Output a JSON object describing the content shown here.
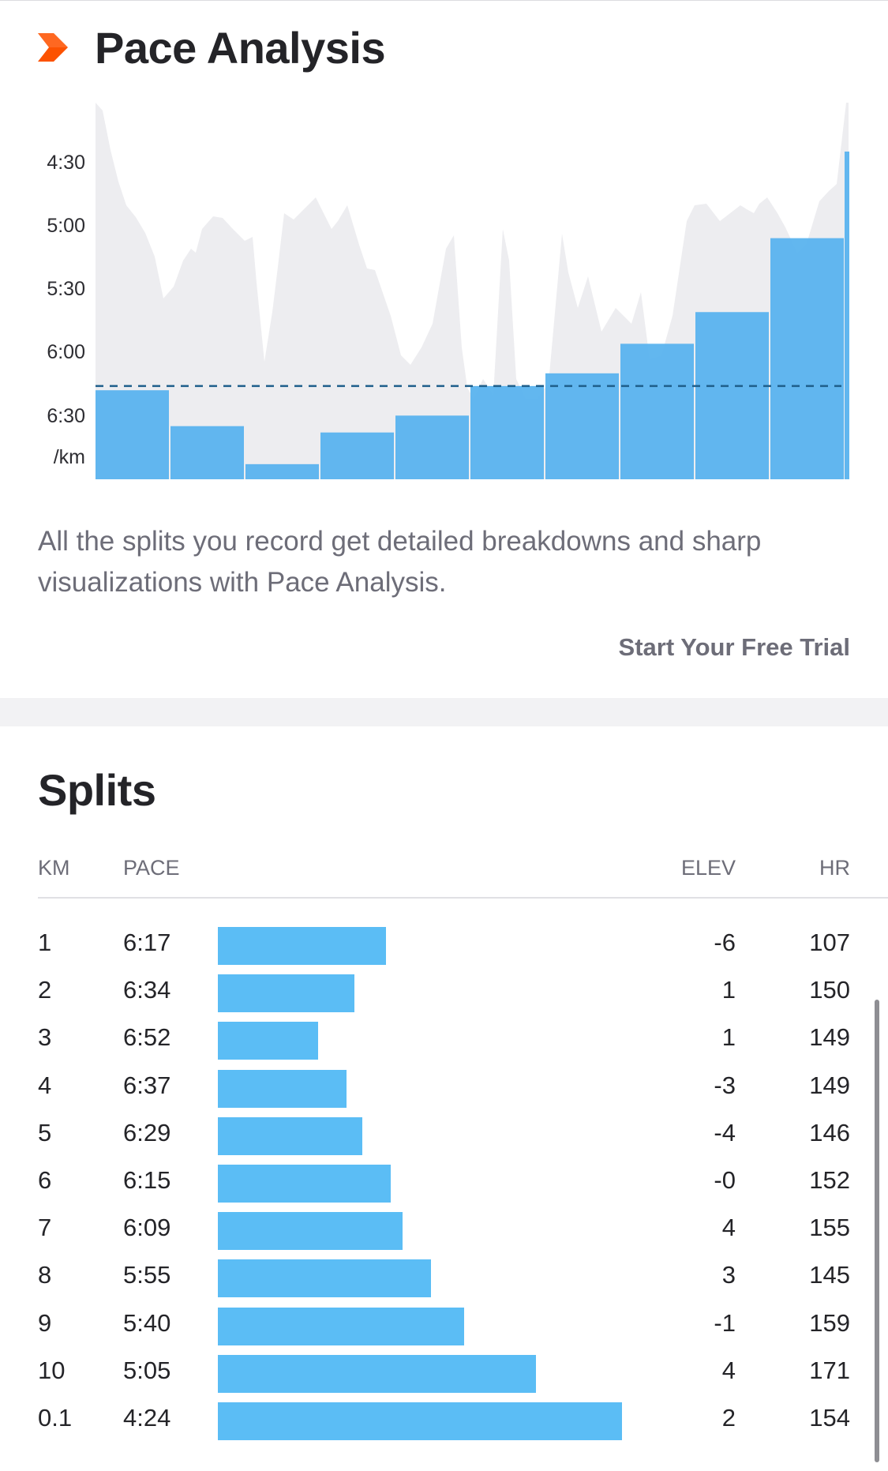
{
  "pace_analysis": {
    "title": "Pace Analysis",
    "icon": "chevron-right-icon",
    "description": "All the splits you record get detailed breakdowns and sharp visualizations with Pace Analysis.",
    "cta_label": "Start Your Free Trial"
  },
  "chart_data": {
    "type": "bar",
    "yaxis": {
      "ticks": [
        "4:30",
        "5:00",
        "5:30",
        "6:00",
        "6:30"
      ],
      "unit": "/km",
      "inverted": true
    },
    "categories": [
      "1",
      "2",
      "3",
      "4",
      "5",
      "6",
      "7",
      "8",
      "9",
      "10",
      "0.1"
    ],
    "values_sec_per_km": [
      377,
      394,
      412,
      397,
      389,
      375,
      369,
      355,
      340,
      305,
      264
    ],
    "average_line_sec_per_km": 375,
    "background_series": "pace trace (gray area)"
  },
  "splits": {
    "title": "Splits",
    "headers": {
      "km": "KM",
      "pace": "PACE",
      "elev": "ELEV",
      "hr": "HR"
    },
    "rows": [
      {
        "km": "1",
        "pace": "6:17",
        "elev": "-6",
        "hr": "107",
        "bar_fraction": 0.416
      },
      {
        "km": "2",
        "pace": "6:34",
        "elev": "1",
        "hr": "150",
        "bar_fraction": 0.338
      },
      {
        "km": "3",
        "pace": "6:52",
        "elev": "1",
        "hr": "149",
        "bar_fraction": 0.248
      },
      {
        "km": "4",
        "pace": "6:37",
        "elev": "-3",
        "hr": "149",
        "bar_fraction": 0.318
      },
      {
        "km": "5",
        "pace": "6:29",
        "elev": "-4",
        "hr": "146",
        "bar_fraction": 0.358
      },
      {
        "km": "6",
        "pace": "6:15",
        "elev": "-0",
        "hr": "152",
        "bar_fraction": 0.428
      },
      {
        "km": "7",
        "pace": "6:09",
        "elev": "4",
        "hr": "155",
        "bar_fraction": 0.458
      },
      {
        "km": "8",
        "pace": "5:55",
        "elev": "3",
        "hr": "145",
        "bar_fraction": 0.528
      },
      {
        "km": "9",
        "pace": "5:40",
        "elev": "-1",
        "hr": "159",
        "bar_fraction": 0.609
      },
      {
        "km": "10",
        "pace": "5:05",
        "elev": "4",
        "hr": "171",
        "bar_fraction": 0.787
      },
      {
        "km": "0.1",
        "pace": "4:24",
        "elev": "2",
        "hr": "154",
        "bar_fraction": 1.0
      }
    ]
  },
  "colors": {
    "accent_orange": "#fc5200",
    "bar_blue": "#5bbdf5",
    "chart_bar_blue": "#5ab3ee",
    "trace_gray": "#ededf0",
    "avg_line": "#1f5f8b"
  }
}
